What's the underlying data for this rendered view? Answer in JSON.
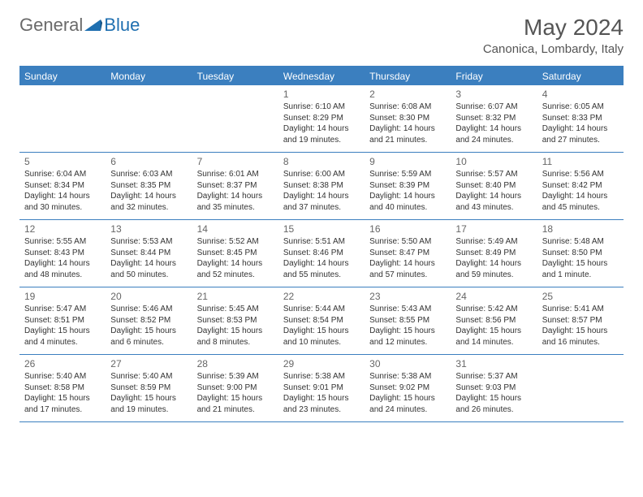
{
  "logo": {
    "general": "General",
    "blue": "Blue"
  },
  "title": "May 2024",
  "location": "Canonica, Lombardy, Italy",
  "header_bg": "#3b7fbf",
  "days": [
    "Sunday",
    "Monday",
    "Tuesday",
    "Wednesday",
    "Thursday",
    "Friday",
    "Saturday"
  ],
  "weeks": [
    [
      null,
      null,
      null,
      {
        "d": "1",
        "sr": "Sunrise: 6:10 AM",
        "ss": "Sunset: 8:29 PM",
        "dl1": "Daylight: 14 hours",
        "dl2": "and 19 minutes."
      },
      {
        "d": "2",
        "sr": "Sunrise: 6:08 AM",
        "ss": "Sunset: 8:30 PM",
        "dl1": "Daylight: 14 hours",
        "dl2": "and 21 minutes."
      },
      {
        "d": "3",
        "sr": "Sunrise: 6:07 AM",
        "ss": "Sunset: 8:32 PM",
        "dl1": "Daylight: 14 hours",
        "dl2": "and 24 minutes."
      },
      {
        "d": "4",
        "sr": "Sunrise: 6:05 AM",
        "ss": "Sunset: 8:33 PM",
        "dl1": "Daylight: 14 hours",
        "dl2": "and 27 minutes."
      }
    ],
    [
      {
        "d": "5",
        "sr": "Sunrise: 6:04 AM",
        "ss": "Sunset: 8:34 PM",
        "dl1": "Daylight: 14 hours",
        "dl2": "and 30 minutes."
      },
      {
        "d": "6",
        "sr": "Sunrise: 6:03 AM",
        "ss": "Sunset: 8:35 PM",
        "dl1": "Daylight: 14 hours",
        "dl2": "and 32 minutes."
      },
      {
        "d": "7",
        "sr": "Sunrise: 6:01 AM",
        "ss": "Sunset: 8:37 PM",
        "dl1": "Daylight: 14 hours",
        "dl2": "and 35 minutes."
      },
      {
        "d": "8",
        "sr": "Sunrise: 6:00 AM",
        "ss": "Sunset: 8:38 PM",
        "dl1": "Daylight: 14 hours",
        "dl2": "and 37 minutes."
      },
      {
        "d": "9",
        "sr": "Sunrise: 5:59 AM",
        "ss": "Sunset: 8:39 PM",
        "dl1": "Daylight: 14 hours",
        "dl2": "and 40 minutes."
      },
      {
        "d": "10",
        "sr": "Sunrise: 5:57 AM",
        "ss": "Sunset: 8:40 PM",
        "dl1": "Daylight: 14 hours",
        "dl2": "and 43 minutes."
      },
      {
        "d": "11",
        "sr": "Sunrise: 5:56 AM",
        "ss": "Sunset: 8:42 PM",
        "dl1": "Daylight: 14 hours",
        "dl2": "and 45 minutes."
      }
    ],
    [
      {
        "d": "12",
        "sr": "Sunrise: 5:55 AM",
        "ss": "Sunset: 8:43 PM",
        "dl1": "Daylight: 14 hours",
        "dl2": "and 48 minutes."
      },
      {
        "d": "13",
        "sr": "Sunrise: 5:53 AM",
        "ss": "Sunset: 8:44 PM",
        "dl1": "Daylight: 14 hours",
        "dl2": "and 50 minutes."
      },
      {
        "d": "14",
        "sr": "Sunrise: 5:52 AM",
        "ss": "Sunset: 8:45 PM",
        "dl1": "Daylight: 14 hours",
        "dl2": "and 52 minutes."
      },
      {
        "d": "15",
        "sr": "Sunrise: 5:51 AM",
        "ss": "Sunset: 8:46 PM",
        "dl1": "Daylight: 14 hours",
        "dl2": "and 55 minutes."
      },
      {
        "d": "16",
        "sr": "Sunrise: 5:50 AM",
        "ss": "Sunset: 8:47 PM",
        "dl1": "Daylight: 14 hours",
        "dl2": "and 57 minutes."
      },
      {
        "d": "17",
        "sr": "Sunrise: 5:49 AM",
        "ss": "Sunset: 8:49 PM",
        "dl1": "Daylight: 14 hours",
        "dl2": "and 59 minutes."
      },
      {
        "d": "18",
        "sr": "Sunrise: 5:48 AM",
        "ss": "Sunset: 8:50 PM",
        "dl1": "Daylight: 15 hours",
        "dl2": "and 1 minute."
      }
    ],
    [
      {
        "d": "19",
        "sr": "Sunrise: 5:47 AM",
        "ss": "Sunset: 8:51 PM",
        "dl1": "Daylight: 15 hours",
        "dl2": "and 4 minutes."
      },
      {
        "d": "20",
        "sr": "Sunrise: 5:46 AM",
        "ss": "Sunset: 8:52 PM",
        "dl1": "Daylight: 15 hours",
        "dl2": "and 6 minutes."
      },
      {
        "d": "21",
        "sr": "Sunrise: 5:45 AM",
        "ss": "Sunset: 8:53 PM",
        "dl1": "Daylight: 15 hours",
        "dl2": "and 8 minutes."
      },
      {
        "d": "22",
        "sr": "Sunrise: 5:44 AM",
        "ss": "Sunset: 8:54 PM",
        "dl1": "Daylight: 15 hours",
        "dl2": "and 10 minutes."
      },
      {
        "d": "23",
        "sr": "Sunrise: 5:43 AM",
        "ss": "Sunset: 8:55 PM",
        "dl1": "Daylight: 15 hours",
        "dl2": "and 12 minutes."
      },
      {
        "d": "24",
        "sr": "Sunrise: 5:42 AM",
        "ss": "Sunset: 8:56 PM",
        "dl1": "Daylight: 15 hours",
        "dl2": "and 14 minutes."
      },
      {
        "d": "25",
        "sr": "Sunrise: 5:41 AM",
        "ss": "Sunset: 8:57 PM",
        "dl1": "Daylight: 15 hours",
        "dl2": "and 16 minutes."
      }
    ],
    [
      {
        "d": "26",
        "sr": "Sunrise: 5:40 AM",
        "ss": "Sunset: 8:58 PM",
        "dl1": "Daylight: 15 hours",
        "dl2": "and 17 minutes."
      },
      {
        "d": "27",
        "sr": "Sunrise: 5:40 AM",
        "ss": "Sunset: 8:59 PM",
        "dl1": "Daylight: 15 hours",
        "dl2": "and 19 minutes."
      },
      {
        "d": "28",
        "sr": "Sunrise: 5:39 AM",
        "ss": "Sunset: 9:00 PM",
        "dl1": "Daylight: 15 hours",
        "dl2": "and 21 minutes."
      },
      {
        "d": "29",
        "sr": "Sunrise: 5:38 AM",
        "ss": "Sunset: 9:01 PM",
        "dl1": "Daylight: 15 hours",
        "dl2": "and 23 minutes."
      },
      {
        "d": "30",
        "sr": "Sunrise: 5:38 AM",
        "ss": "Sunset: 9:02 PM",
        "dl1": "Daylight: 15 hours",
        "dl2": "and 24 minutes."
      },
      {
        "d": "31",
        "sr": "Sunrise: 5:37 AM",
        "ss": "Sunset: 9:03 PM",
        "dl1": "Daylight: 15 hours",
        "dl2": "and 26 minutes."
      },
      null
    ]
  ]
}
